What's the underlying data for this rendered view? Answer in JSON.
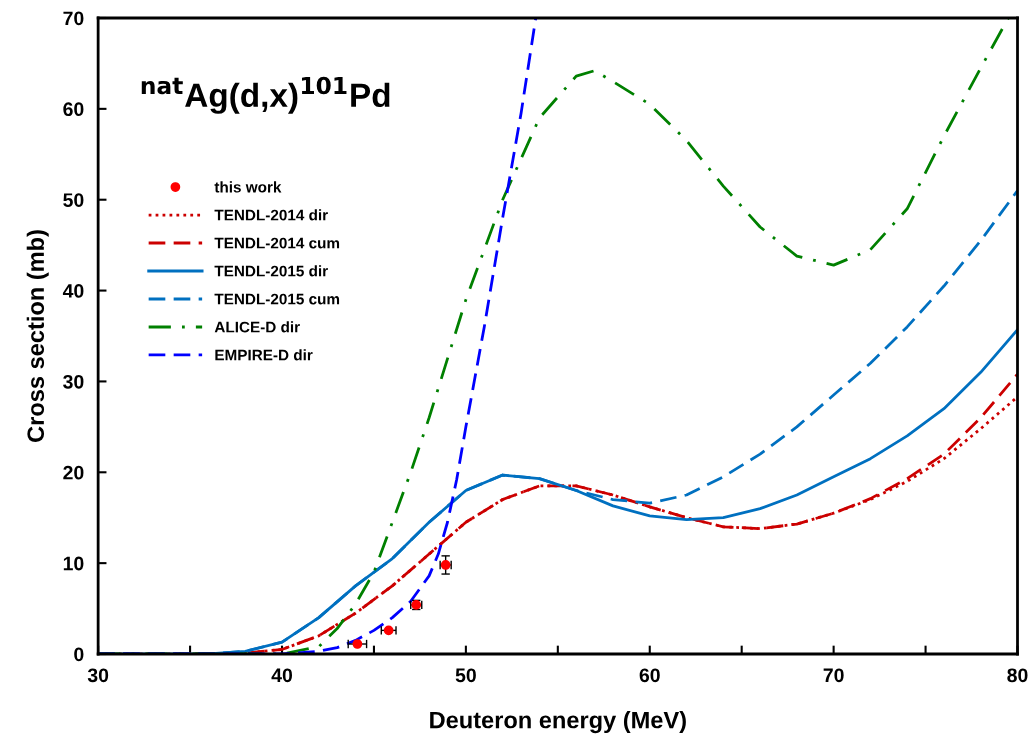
{
  "chart_data": {
    "type": "line",
    "title": "$^{nat}$Ag(d,x)$^{101}$Pd",
    "xlabel": "Deuteron energy (MeV)",
    "ylabel": "Cross section (mb)",
    "xlim": [
      30,
      80
    ],
    "ylim": [
      0,
      70
    ],
    "xticks": [
      30,
      {
        "value": 35,
        "label": null
      },
      40,
      {
        "value": 45,
        "label": null
      },
      50,
      {
        "value": 55,
        "label": null
      },
      60,
      {
        "value": 65,
        "label": null
      },
      70,
      {
        "value": 75,
        "label": null
      },
      80
    ],
    "yticks": [
      0,
      10,
      20,
      30,
      40,
      50,
      60,
      70
    ],
    "grid": false,
    "legend": "left",
    "series": [
      {
        "name": "this work",
        "type": "scatter",
        "color": "#ff0000",
        "marker": "circle",
        "x": [
          44.1,
          45.8,
          47.3,
          48.9
        ],
        "values": [
          1.1,
          2.6,
          5.4,
          9.8
        ],
        "errors": [
          null,
          null,
          0.5,
          1.0
        ],
        "xerrors": [
          0.5,
          0.4,
          0.3,
          0.3
        ]
      },
      {
        "name": "TENDL-2014 dir",
        "color": "#cc0000",
        "line_style": "dotted",
        "x": [
          30,
          36,
          38,
          40,
          42,
          44,
          46,
          48,
          50,
          52,
          54,
          56,
          58,
          60,
          62,
          64,
          66,
          68,
          70,
          72,
          74,
          76,
          78,
          80
        ],
        "values": [
          0,
          0,
          0.1,
          0.5,
          2,
          4.5,
          7.5,
          11,
          14.5,
          17,
          18.5,
          18.5,
          17.5,
          16.2,
          15,
          14,
          13.8,
          14.3,
          15.5,
          17,
          19,
          21.5,
          24.8,
          28.3
        ]
      },
      {
        "name": "TENDL-2014 cum",
        "color": "#cc0000",
        "line_style": "dashed",
        "x": [
          30,
          36,
          38,
          40,
          42,
          44,
          46,
          48,
          50,
          52,
          54,
          56,
          58,
          60,
          62,
          64,
          66,
          68,
          70,
          72,
          74,
          76,
          78,
          80
        ],
        "values": [
          0,
          0,
          0.1,
          0.5,
          2,
          4.5,
          7.5,
          11,
          14.5,
          17,
          18.5,
          18.5,
          17.5,
          16.2,
          15,
          14,
          13.8,
          14.3,
          15.5,
          17.1,
          19.3,
          22,
          26,
          30.8
        ]
      },
      {
        "name": "TENDL-2015 dir",
        "color": "#0070c0",
        "line_style": "solid",
        "x": [
          30,
          36,
          38,
          40,
          42,
          44,
          46,
          48,
          50,
          52,
          54,
          56,
          58,
          60,
          62,
          64,
          66,
          68,
          70,
          72,
          74,
          76,
          78,
          80
        ],
        "values": [
          0,
          0,
          0.3,
          1.3,
          4,
          7.5,
          10.5,
          14.5,
          18,
          19.7,
          19.3,
          18,
          16.3,
          15.2,
          14.8,
          15,
          16,
          17.5,
          19.5,
          21.5,
          24,
          27,
          31,
          35.7
        ]
      },
      {
        "name": "TENDL-2015 cum",
        "color": "#0070c0",
        "line_style": "dashed",
        "x": [
          30,
          36,
          38,
          40,
          42,
          44,
          46,
          48,
          50,
          52,
          54,
          56,
          58,
          60,
          62,
          64,
          66,
          68,
          70,
          72,
          74,
          76,
          78,
          80
        ],
        "values": [
          0,
          0,
          0.3,
          1.3,
          4,
          7.5,
          10.5,
          14.5,
          18,
          19.7,
          19.3,
          18,
          17,
          16.6,
          17.5,
          19.5,
          22,
          25,
          28.5,
          32,
          36,
          40.5,
          45.5,
          51
        ]
      },
      {
        "name": "ALICE-D dir",
        "color": "#008000",
        "line_style": "dashdot",
        "x": [
          30,
          40,
          42,
          43,
          44,
          45,
          46,
          47,
          48,
          50,
          52,
          54,
          56,
          57,
          58,
          60,
          62,
          64,
          66,
          68,
          70,
          72,
          74,
          76,
          78,
          79.5
        ],
        "values": [
          0,
          0,
          0.8,
          2.8,
          5.5,
          9,
          14.5,
          20,
          26,
          39,
          50,
          59,
          63.6,
          64.2,
          63,
          60.5,
          56.5,
          51.5,
          47,
          43.8,
          42.8,
          44.5,
          49,
          57,
          64.5,
          70
        ]
      },
      {
        "name": "EMPIRE-D dir",
        "color": "#0000ff",
        "line_style": "dashed",
        "x": [
          30,
          40,
          42,
          43,
          44,
          45,
          46,
          47,
          48,
          48.5,
          49,
          49.5,
          50,
          51,
          52,
          53,
          53.8
        ],
        "values": [
          0,
          0,
          0.3,
          0.7,
          1.5,
          2.6,
          4,
          5.8,
          8.6,
          11,
          14.5,
          19.2,
          25,
          36,
          48,
          59.5,
          70
        ]
      }
    ]
  }
}
